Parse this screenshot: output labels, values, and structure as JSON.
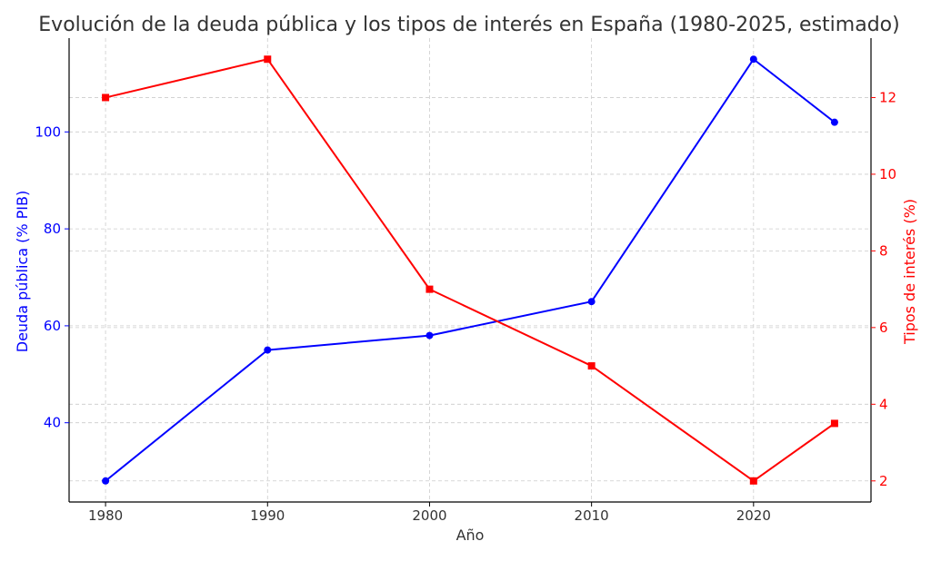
{
  "chart_data": {
    "type": "line",
    "title": "Evolución de la deuda pública y los tipos de interés en España (1980-2025, estimado)",
    "xlabel": "Año",
    "ylabel_left": "Deuda pública (% PIB)",
    "ylabel_right": "Tipos de interés (%)",
    "x": [
      1980,
      1990,
      2000,
      2010,
      2020,
      2025
    ],
    "x_ticks": [
      1980,
      1990,
      2000,
      2010,
      2020
    ],
    "xlim": [
      1977.75,
      2027.25
    ],
    "ylim_left": [
      23.65,
      119.35
    ],
    "ylim_right": [
      1.45,
      13.55
    ],
    "y_ticks_left": [
      40,
      60,
      80,
      100
    ],
    "y_ticks_right": [
      2,
      4,
      6,
      8,
      10,
      12
    ],
    "grid": true,
    "series": [
      {
        "axis": "left",
        "color": "#0000ff",
        "marker": "circle",
        "values": [
          28,
          55,
          58,
          65,
          115,
          102
        ]
      },
      {
        "axis": "right",
        "color": "#ff0000",
        "marker": "square",
        "values": [
          12,
          13,
          7,
          5,
          2,
          3.5
        ]
      }
    ],
    "colors": {
      "title": "#333333",
      "axis_text": "#333333",
      "grid": "#cccccc"
    }
  }
}
